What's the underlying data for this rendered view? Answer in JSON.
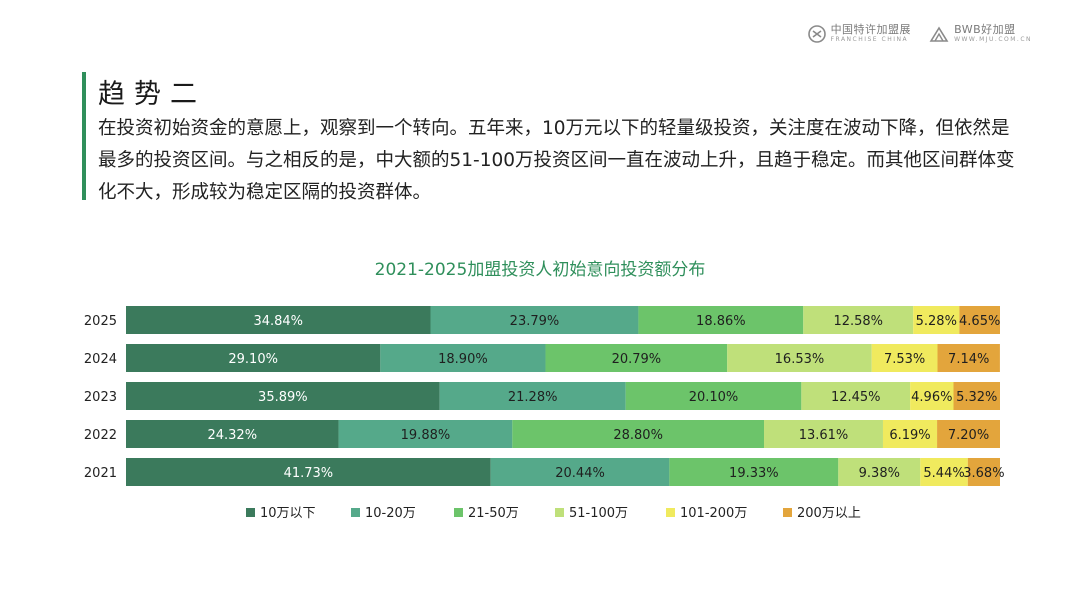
{
  "logos": {
    "left": {
      "main": "中国特许加盟展",
      "sub": "FRANCHISE CHINA"
    },
    "right": {
      "main": "BWB好加盟",
      "sub": "WWW.MJU.COM.CN"
    }
  },
  "heading": "趋势二",
  "paragraph": "在投资初始资金的意愿上，观察到一个转向。五年来，10万元以下的轻量级投资，关注度在波动下降，但依然是最多的投资区间。与之相反的是，中大额的51-100万投资区间一直在波动上升，且趋于稳定。而其他区间群体变化不大，形成较为稳定区隔的投资群体。",
  "chart_data": {
    "type": "bar",
    "orientation": "horizontal",
    "stacked": true,
    "title": "2021-2025加盟投资人初始意向投资额分布",
    "categories": [
      "2025",
      "2024",
      "2023",
      "2022",
      "2021"
    ],
    "series": [
      {
        "name": "10万以下",
        "color": "#3b7a5c",
        "label_color": "#ffffff",
        "values": [
          34.84,
          29.1,
          35.89,
          24.32,
          41.73
        ],
        "labels": [
          "34.84%",
          "29.10%",
          "35.89%",
          "24.32%",
          "41.73%"
        ]
      },
      {
        "name": "10-20万",
        "color": "#55a98a",
        "label_color": "#1f1f1f",
        "values": [
          23.79,
          18.9,
          21.28,
          19.88,
          20.44
        ],
        "labels": [
          "23.79%",
          "18.90%",
          "21.28%",
          "19.88%",
          "20.44%"
        ]
      },
      {
        "name": "21-50万",
        "color": "#6cc46a",
        "label_color": "#1f1f1f",
        "values": [
          18.86,
          20.79,
          20.1,
          28.8,
          19.33
        ],
        "labels": [
          "18.86%",
          "20.79%",
          "20.10%",
          "28.80%",
          "19.33%"
        ]
      },
      {
        "name": "51-100万",
        "color": "#bfe07a",
        "label_color": "#1f1f1f",
        "values": [
          12.58,
          16.53,
          12.45,
          13.61,
          9.38
        ],
        "labels": [
          "12.58%",
          "16.53%",
          "12.45%",
          "13.61%",
          "9.38%"
        ]
      },
      {
        "name": "101-200万",
        "color": "#f0ea5e",
        "label_color": "#1f1f1f",
        "values": [
          5.28,
          7.53,
          4.96,
          6.19,
          5.44
        ],
        "labels": [
          "5.28%",
          "7.53%",
          "4.96%",
          "6.19%",
          "5.44%"
        ]
      },
      {
        "name": "200万以上",
        "color": "#e3a53c",
        "label_color": "#1f1f1f",
        "values": [
          4.65,
          7.14,
          5.32,
          7.2,
          3.68
        ],
        "labels": [
          "4.65%",
          "7.14%",
          "5.32%",
          "7.20%",
          "3.68%"
        ]
      }
    ],
    "xlim": [
      0,
      100
    ],
    "legend": "bottom",
    "grid": false
  }
}
